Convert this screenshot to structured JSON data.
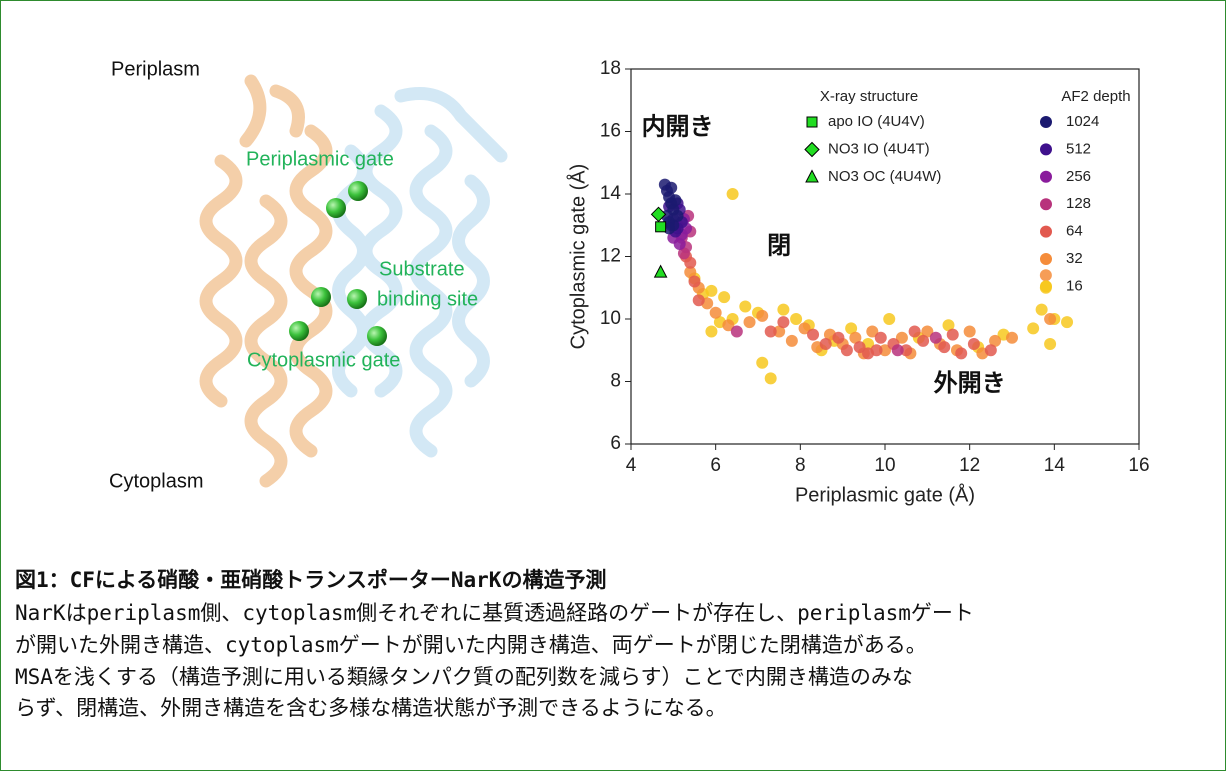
{
  "illustration": {
    "labels": [
      "Periplasm",
      "Periplasmic gate",
      "Substrate",
      "binding site",
      "Cytoplasmic gate",
      "Cytoplasm"
    ]
  },
  "chart_data": {
    "type": "scatter",
    "xlabel": "Periplasmic gate (Å)",
    "ylabel": "Cytoplasmic gate (Å)",
    "xlim": [
      4,
      16
    ],
    "xticks": [
      4,
      6,
      8,
      10,
      12,
      14,
      16
    ],
    "ylim": [
      6,
      18
    ],
    "yticks": [
      6,
      8,
      10,
      12,
      14,
      16,
      18
    ],
    "annotations": [
      {
        "text": "内開き",
        "x": 5.1,
        "y": 16.1
      },
      {
        "text": "閉",
        "x": 7.5,
        "y": 12.3
      },
      {
        "text": "外開き",
        "x": 12,
        "y": 7.9
      }
    ],
    "reference_legend_title": "X-ray structure",
    "reference_series": [
      {
        "name": "apo IO (4U4V)",
        "color": "#22dd22",
        "marker": "square",
        "x": [
          4.7
        ],
        "values": [
          12.95
        ]
      },
      {
        "name": "NO3 IO (4U4T)",
        "color": "#22dd22",
        "marker": "diamond",
        "x": [
          4.65
        ],
        "values": [
          13.35
        ]
      },
      {
        "name": "NO3 OC (4U4W)",
        "color": "#22dd22",
        "marker": "triangle",
        "x": [
          4.7
        ],
        "values": [
          11.5
        ]
      }
    ],
    "legend_title": "AF2 depth",
    "series": [
      {
        "name": "1024",
        "color": "#1b1a70",
        "x": [
          4.8,
          4.85,
          4.9,
          4.95,
          5.0,
          4.85,
          4.9,
          5.0,
          5.05,
          4.95,
          4.9,
          5.1
        ],
        "values": [
          14.3,
          14.1,
          13.9,
          13.7,
          13.5,
          13.3,
          13.1,
          13.0,
          13.8,
          14.2,
          12.9,
          13.3
        ]
      },
      {
        "name": "512",
        "color": "#3e108c",
        "x": [
          4.9,
          5.0,
          5.1,
          5.15,
          4.95,
          5.05,
          5.2,
          5.1
        ],
        "values": [
          13.6,
          13.2,
          12.9,
          13.5,
          13.0,
          12.8,
          13.1,
          13.7
        ]
      },
      {
        "name": "256",
        "color": "#8a1c9c",
        "x": [
          5.1,
          5.2,
          5.25,
          5.0,
          5.3,
          5.15
        ],
        "values": [
          13.0,
          12.7,
          13.2,
          12.6,
          12.9,
          12.4
        ]
      },
      {
        "name": "128",
        "color": "#b8337c",
        "x": [
          5.2,
          5.3,
          5.35,
          5.25,
          5.4,
          6.5,
          10.3,
          11.2
        ],
        "values": [
          12.6,
          12.3,
          13.3,
          12.1,
          12.8,
          9.6,
          9.0,
          9.4
        ]
      },
      {
        "name": "64",
        "color": "#e2594f",
        "x": [
          5.3,
          5.4,
          5.5,
          5.6,
          7.3,
          7.6,
          8.3,
          8.6,
          9.1,
          9.4,
          9.6,
          9.9,
          10.2,
          10.5,
          10.9,
          11.4,
          11.8,
          12.1,
          12.5,
          8.9,
          9.8,
          10.7,
          11.6
        ],
        "values": [
          12.0,
          11.8,
          11.2,
          10.6,
          9.6,
          9.9,
          9.5,
          9.2,
          9.0,
          9.1,
          8.9,
          9.4,
          9.2,
          9.0,
          9.3,
          9.1,
          8.9,
          9.2,
          9.0,
          9.4,
          9.0,
          9.6,
          9.5
        ]
      },
      {
        "name": "32",
        "color": "#f58c3a",
        "x": [
          5.4,
          5.6,
          5.8,
          6.0,
          6.3,
          6.8,
          7.1,
          7.5,
          7.8,
          8.1,
          8.4,
          8.7,
          9.0,
          9.3,
          9.5,
          9.7,
          10.0,
          10.4,
          10.6,
          11.0,
          11.3,
          11.7,
          12.0,
          12.3,
          12.6,
          13.0,
          13.8,
          13.9
        ],
        "values": [
          11.5,
          11.0,
          10.5,
          10.2,
          9.8,
          9.9,
          10.1,
          9.6,
          9.3,
          9.7,
          9.1,
          9.5,
          9.2,
          9.4,
          8.9,
          9.6,
          9.0,
          9.4,
          8.9,
          9.6,
          9.2,
          9.0,
          9.6,
          8.9,
          9.3,
          9.4,
          11.4,
          10.0
        ]
      },
      {
        "name": "16",
        "color": "#f7c81e",
        "x": [
          5.5,
          5.7,
          5.9,
          6.1,
          6.4,
          6.4,
          6.7,
          7.0,
          7.1,
          7.3,
          7.6,
          7.9,
          8.2,
          8.5,
          8.8,
          9.2,
          9.6,
          10.1,
          10.8,
          11.5,
          12.2,
          12.8,
          13.5,
          13.7,
          13.8,
          13.9,
          14.3,
          14.0,
          5.9,
          6.2
        ],
        "values": [
          11.3,
          10.8,
          10.9,
          9.9,
          14.0,
          10.0,
          10.4,
          10.2,
          8.6,
          8.1,
          10.3,
          10.0,
          9.8,
          9.0,
          9.3,
          9.7,
          9.2,
          10.0,
          9.4,
          9.8,
          9.1,
          9.5,
          9.7,
          10.3,
          11.0,
          9.2,
          9.9,
          10.0,
          9.6,
          10.7
        ]
      }
    ]
  },
  "caption": {
    "title": "図1：CFによる硝酸・亜硝酸トランスポーターNarKの構造予測",
    "lines": [
      "NarKはperiplasm側、cytoplasm側それぞれに基質透過経路のゲートが存在し、periplasmゲート",
      "が開いた外開き構造、cytoplasmゲートが開いた内開き構造、両ゲートが閉じた閉構造がある。",
      "MSAを浅くする（構造予測に用いる類縁タンパク質の配列数を減らす）ことで内開き構造のみな",
      "らず、閉構造、外開き構造を含む多様な構造状態が予測できるようになる。"
    ]
  }
}
